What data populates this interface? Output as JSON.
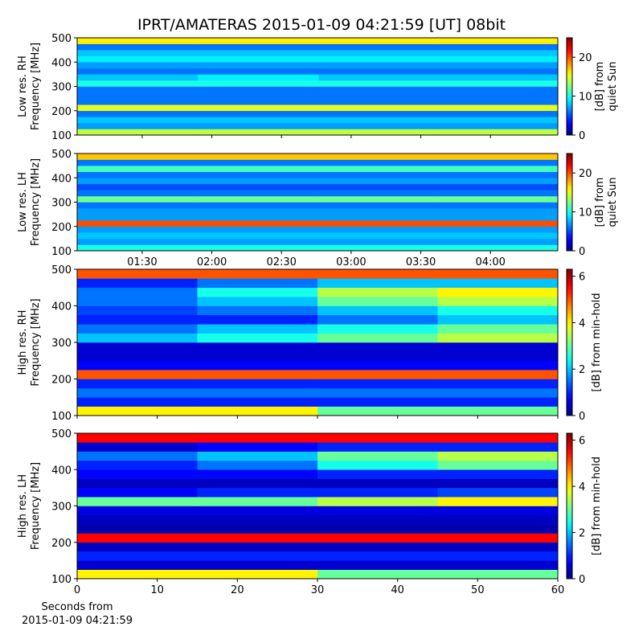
{
  "chart_data": [
    {
      "type": "heatmap",
      "title": "IPRT/AMATERAS 2015-01-09 04:21:59 [UT]   08bit",
      "ylabel": [
        "Low res. RH",
        "Frequency [MHz]"
      ],
      "colorbar_label": [
        "[dB] from",
        "quiet Sun"
      ],
      "colormap": "jet",
      "xlim": [
        62,
        269
      ],
      "xticks": [
        90,
        120,
        150,
        180,
        210,
        240
      ],
      "show_xtick_labels": false,
      "ylim": [
        100,
        500
      ],
      "yticks": [
        100,
        200,
        300,
        400,
        500
      ],
      "clim": [
        0,
        25
      ],
      "cticks": [
        0,
        10,
        20
      ],
      "xbins": [
        62,
        114,
        166,
        217,
        269
      ],
      "ybins": [
        100,
        125,
        150,
        175,
        200,
        225,
        250,
        275,
        300,
        325,
        350,
        375,
        400,
        425,
        450,
        475,
        500
      ],
      "z": [
        [
          14,
          14,
          14,
          14
        ],
        [
          7,
          7,
          7,
          7
        ],
        [
          8,
          8,
          8,
          8
        ],
        [
          6,
          6,
          6,
          6
        ],
        [
          15,
          15,
          15,
          15
        ],
        [
          6,
          6,
          6,
          6
        ],
        [
          6,
          6,
          6,
          6
        ],
        [
          6,
          6,
          6,
          6
        ],
        [
          10,
          10,
          10,
          10
        ],
        [
          8,
          9,
          8,
          8
        ],
        [
          6,
          6,
          6,
          6
        ],
        [
          7,
          7,
          7,
          7
        ],
        [
          9,
          9,
          9,
          9
        ],
        [
          8,
          8,
          8,
          8
        ],
        [
          6,
          6,
          6,
          6
        ],
        [
          16,
          16,
          16,
          16
        ]
      ]
    },
    {
      "type": "heatmap",
      "ylabel": [
        "Low res. LH",
        "Frequency [MHz]"
      ],
      "colorbar_label": [
        "[dB] from",
        "quiet Sun"
      ],
      "colormap": "jet",
      "xlim": [
        62,
        269
      ],
      "xticks": [
        {
          "value": 90,
          "label": "01:30"
        },
        {
          "value": 120,
          "label": "02:00"
        },
        {
          "value": 150,
          "label": "02:30"
        },
        {
          "value": 180,
          "label": "03:00"
        },
        {
          "value": 210,
          "label": "03:30"
        },
        {
          "value": 240,
          "label": "04:00"
        }
      ],
      "show_xtick_labels": true,
      "ylim": [
        100,
        500
      ],
      "yticks": [
        100,
        200,
        300,
        400,
        500
      ],
      "clim": [
        0,
        25
      ],
      "cticks": [
        0,
        10,
        20
      ],
      "xbins": [
        62,
        114,
        166,
        217,
        269
      ],
      "ybins": [
        100,
        125,
        150,
        175,
        200,
        225,
        250,
        275,
        300,
        325,
        350,
        375,
        400,
        425,
        450,
        475,
        500
      ],
      "z": [
        [
          10,
          10,
          10,
          10
        ],
        [
          7,
          7,
          7,
          7
        ],
        [
          8,
          8,
          8,
          8
        ],
        [
          7,
          7,
          7,
          7
        ],
        [
          20,
          20,
          20,
          20
        ],
        [
          7,
          7,
          7,
          7
        ],
        [
          7,
          7,
          7,
          7
        ],
        [
          6,
          6,
          6,
          6
        ],
        [
          12,
          12,
          12,
          12
        ],
        [
          6,
          6,
          6,
          6
        ],
        [
          5,
          5,
          5,
          5
        ],
        [
          7,
          7,
          7,
          7
        ],
        [
          6,
          6,
          6,
          6
        ],
        [
          11,
          11,
          11,
          11
        ],
        [
          6,
          6,
          6,
          6
        ],
        [
          17,
          17,
          17,
          17
        ]
      ]
    },
    {
      "type": "heatmap",
      "ylabel": [
        "High res. RH",
        "Frequency [MHz]"
      ],
      "colorbar_label": [
        "[dB] from min-hold"
      ],
      "colormap": "jet",
      "xlim": [
        0,
        60
      ],
      "xticks": [
        0,
        10,
        20,
        30,
        40,
        50,
        60
      ],
      "show_xtick_labels": false,
      "ylim": [
        100,
        500
      ],
      "yticks": [
        100,
        200,
        300,
        400,
        500
      ],
      "clim": [
        0,
        6.3
      ],
      "cticks": [
        0,
        2,
        4,
        6
      ],
      "xbins": [
        0,
        15,
        30,
        45,
        60
      ],
      "ybins": [
        100,
        125,
        150,
        175,
        200,
        225,
        250,
        275,
        300,
        325,
        350,
        375,
        400,
        425,
        450,
        475,
        500
      ],
      "z": [
        [
          4,
          4,
          3,
          3
        ],
        [
          1,
          1,
          1,
          1
        ],
        [
          1.5,
          1.5,
          1.5,
          1.5
        ],
        [
          1,
          1,
          1,
          1
        ],
        [
          5,
          5,
          5,
          5
        ],
        [
          0.8,
          0.8,
          0.8,
          0.8
        ],
        [
          0.5,
          0.5,
          0.5,
          0.5
        ],
        [
          0.5,
          0.5,
          0.5,
          0.5
        ],
        [
          2,
          2.5,
          3,
          3.5
        ],
        [
          1.5,
          2,
          2.5,
          3
        ],
        [
          1,
          1,
          1.5,
          2
        ],
        [
          1.2,
          1.5,
          2,
          2.5
        ],
        [
          1.5,
          2,
          3,
          3.5
        ],
        [
          1.5,
          2.5,
          3.5,
          4
        ],
        [
          1,
          1.5,
          2,
          2
        ],
        [
          5,
          5,
          5,
          5
        ]
      ]
    },
    {
      "type": "heatmap",
      "ylabel": [
        "High res. LH",
        "Frequency [MHz]"
      ],
      "colorbar_label": [
        "[dB] from min-hold"
      ],
      "colormap": "jet",
      "xlabel": [
        "Seconds from",
        "2015-01-09 04:21:59"
      ],
      "xlim": [
        0,
        60
      ],
      "xticks": [
        0,
        10,
        20,
        30,
        40,
        50,
        60
      ],
      "show_xtick_labels": true,
      "ylim": [
        100,
        500
      ],
      "yticks": [
        100,
        200,
        300,
        400,
        500
      ],
      "clim": [
        0,
        6.3
      ],
      "cticks": [
        0,
        2,
        4,
        6
      ],
      "xbins": [
        0,
        15,
        30,
        45,
        60
      ],
      "ybins": [
        100,
        125,
        150,
        175,
        200,
        225,
        250,
        275,
        300,
        325,
        350,
        375,
        400,
        425,
        450,
        475,
        500
      ],
      "z": [
        [
          4,
          4,
          3,
          3
        ],
        [
          0.5,
          0.5,
          0.5,
          0.5
        ],
        [
          1,
          1,
          1,
          1
        ],
        [
          0.4,
          0.4,
          0.4,
          0.4
        ],
        [
          5.5,
          5.5,
          5.5,
          5.5
        ],
        [
          0.3,
          0.3,
          0.3,
          0.3
        ],
        [
          0.4,
          0.4,
          0.4,
          0.4
        ],
        [
          0.6,
          0.6,
          0.6,
          0.6
        ],
        [
          3,
          3,
          3.5,
          4
        ],
        [
          0.8,
          1,
          1,
          1.2
        ],
        [
          0.4,
          0.4,
          0.4,
          0.4
        ],
        [
          0.8,
          0.8,
          1,
          1
        ],
        [
          1,
          1.5,
          2.5,
          3
        ],
        [
          1.5,
          2,
          3,
          3.5
        ],
        [
          0.5,
          0.8,
          1,
          1
        ],
        [
          5.5,
          5.5,
          5.5,
          5.5
        ]
      ]
    }
  ]
}
